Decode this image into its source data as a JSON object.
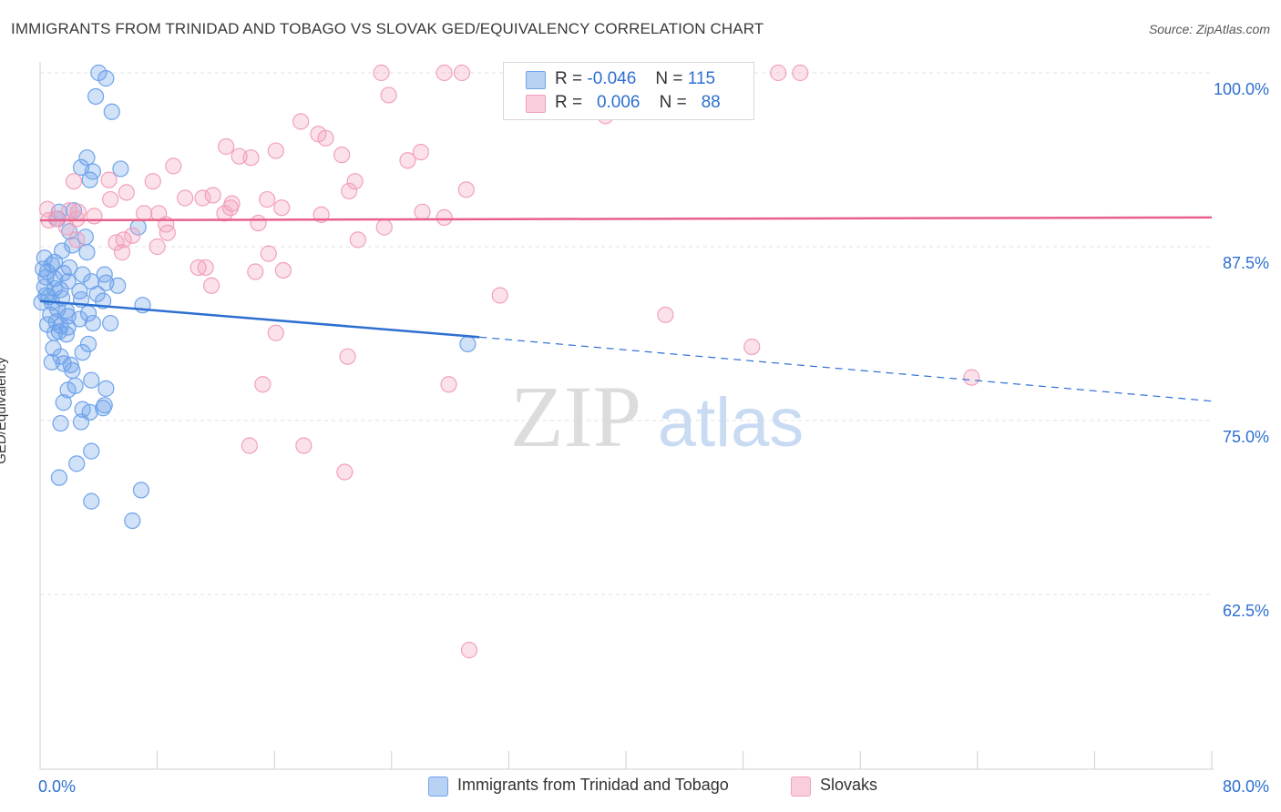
{
  "header": {
    "title": "IMMIGRANTS FROM TRINIDAD AND TOBAGO VS SLOVAK GED/EQUIVALENCY CORRELATION CHART",
    "source": "Source: ZipAtlas.com"
  },
  "watermark": {
    "zip": "ZIP",
    "atlas": "atlas"
  },
  "legend": {
    "rows": [
      {
        "r_label": "R =",
        "r_value": "-0.046",
        "n_label": "N =",
        "n_value": "115",
        "color": "#6ea3ea"
      },
      {
        "r_label": "R =",
        "r_value": "0.006",
        "n_label": "N =",
        "n_value": "88",
        "color": "#f2a0bb"
      }
    ]
  },
  "bottom_legend": {
    "series1": "Immigrants from Trinidad and Tobago",
    "series2": "Slovaks"
  },
  "chart_data": {
    "type": "scatter",
    "ylabel": "GED/Equivalency",
    "xlabel": "",
    "xlim": [
      0,
      80
    ],
    "ylim": [
      52,
      101
    ],
    "x_tick_labels": [
      "0.0%",
      "80.0%"
    ],
    "y_ticks": [
      100,
      87.5,
      75,
      62.5
    ],
    "y_tick_labels": [
      "100.0%",
      "87.5%",
      "75.0%",
      "62.5%"
    ],
    "grid": true,
    "legend_position": "top-center",
    "series": [
      {
        "name": "Immigrants from Trinidad and Tobago",
        "color": "#6ea3ea",
        "line_color": "#2d6fd1",
        "trend": {
          "x": [
            0,
            30
          ],
          "y": [
            83.6,
            81.0
          ],
          "dashed_to": [
            80,
            76.4
          ]
        },
        "points": [
          [
            4.0,
            100
          ],
          [
            4.5,
            99.6
          ],
          [
            3.8,
            98.3
          ],
          [
            4.9,
            97.2
          ],
          [
            3.2,
            93.9
          ],
          [
            2.8,
            93.2
          ],
          [
            3.6,
            92.9
          ],
          [
            5.5,
            93.1
          ],
          [
            3.4,
            92.3
          ],
          [
            1.3,
            90.0
          ],
          [
            2.3,
            90.1
          ],
          [
            1.2,
            89.5
          ],
          [
            6.7,
            88.9
          ],
          [
            2.0,
            88.6
          ],
          [
            3.1,
            88.2
          ],
          [
            2.2,
            87.6
          ],
          [
            1.5,
            87.2
          ],
          [
            3.2,
            87.1
          ],
          [
            0.3,
            86.7
          ],
          [
            1.0,
            86.4
          ],
          [
            0.8,
            86.2
          ],
          [
            2.0,
            86.0
          ],
          [
            0.2,
            85.9
          ],
          [
            0.5,
            85.7
          ],
          [
            1.6,
            85.6
          ],
          [
            2.9,
            85.5
          ],
          [
            4.4,
            85.5
          ],
          [
            0.4,
            85.3
          ],
          [
            1.0,
            85.2
          ],
          [
            1.9,
            85.0
          ],
          [
            3.5,
            85.0
          ],
          [
            4.5,
            84.9
          ],
          [
            5.3,
            84.7
          ],
          [
            0.3,
            84.6
          ],
          [
            1.0,
            84.5
          ],
          [
            1.4,
            84.4
          ],
          [
            2.7,
            84.3
          ],
          [
            3.9,
            84.1
          ],
          [
            0.4,
            84.0
          ],
          [
            0.6,
            83.9
          ],
          [
            1.5,
            83.8
          ],
          [
            2.8,
            83.7
          ],
          [
            4.3,
            83.6
          ],
          [
            0.1,
            83.5
          ],
          [
            0.8,
            83.5
          ],
          [
            7.0,
            83.3
          ],
          [
            1.2,
            83.0
          ],
          [
            1.8,
            82.9
          ],
          [
            3.3,
            82.7
          ],
          [
            0.7,
            82.6
          ],
          [
            1.9,
            82.5
          ],
          [
            2.7,
            82.3
          ],
          [
            1.1,
            82.1
          ],
          [
            3.6,
            82.0
          ],
          [
            4.8,
            82.0
          ],
          [
            0.5,
            81.9
          ],
          [
            1.4,
            81.8
          ],
          [
            1.9,
            81.7
          ],
          [
            1.3,
            81.4
          ],
          [
            1.0,
            81.3
          ],
          [
            1.8,
            81.2
          ],
          [
            29.2,
            80.5
          ],
          [
            3.3,
            80.5
          ],
          [
            0.9,
            80.2
          ],
          [
            2.9,
            79.9
          ],
          [
            1.4,
            79.6
          ],
          [
            0.8,
            79.2
          ],
          [
            1.6,
            79.1
          ],
          [
            2.1,
            79.0
          ],
          [
            2.2,
            78.6
          ],
          [
            3.5,
            77.9
          ],
          [
            2.4,
            77.5
          ],
          [
            4.5,
            77.3
          ],
          [
            1.9,
            77.2
          ],
          [
            1.6,
            76.3
          ],
          [
            2.9,
            75.8
          ],
          [
            4.3,
            75.9
          ],
          [
            4.4,
            76.1
          ],
          [
            3.4,
            75.6
          ],
          [
            1.4,
            74.8
          ],
          [
            2.8,
            74.9
          ],
          [
            3.5,
            72.8
          ],
          [
            2.5,
            71.9
          ],
          [
            1.3,
            70.9
          ],
          [
            6.9,
            70.0
          ],
          [
            3.5,
            69.2
          ],
          [
            6.3,
            67.8
          ]
        ]
      },
      {
        "name": "Slovaks",
        "color": "#f2a0bb",
        "line_color": "#e8608a",
        "trend": {
          "x": [
            0,
            80
          ],
          "y": [
            89.4,
            89.6
          ]
        },
        "points": [
          [
            23.3,
            100
          ],
          [
            27.6,
            100
          ],
          [
            28.8,
            100
          ],
          [
            39.3,
            100
          ],
          [
            50.4,
            100
          ],
          [
            51.9,
            100
          ],
          [
            23.8,
            98.4
          ],
          [
            38.6,
            96.9
          ],
          [
            17.8,
            96.5
          ],
          [
            19.5,
            95.3
          ],
          [
            19.0,
            95.6
          ],
          [
            12.7,
            94.7
          ],
          [
            16.1,
            94.4
          ],
          [
            26.0,
            94.3
          ],
          [
            20.6,
            94.1
          ],
          [
            13.6,
            94.0
          ],
          [
            14.4,
            93.9
          ],
          [
            25.1,
            93.7
          ],
          [
            9.1,
            93.3
          ],
          [
            2.3,
            92.2
          ],
          [
            4.7,
            92.3
          ],
          [
            7.7,
            92.2
          ],
          [
            21.5,
            92.2
          ],
          [
            21.1,
            91.5
          ],
          [
            29.1,
            91.6
          ],
          [
            5.9,
            91.4
          ],
          [
            11.8,
            91.2
          ],
          [
            9.9,
            91.0
          ],
          [
            11.1,
            91.0
          ],
          [
            15.5,
            90.9
          ],
          [
            4.8,
            90.9
          ],
          [
            13.1,
            90.6
          ],
          [
            13.0,
            90.3
          ],
          [
            16.5,
            90.3
          ],
          [
            0.5,
            90.2
          ],
          [
            2.0,
            90.1
          ],
          [
            2.6,
            90.0
          ],
          [
            12.6,
            89.9
          ],
          [
            8.1,
            89.9
          ],
          [
            19.2,
            89.8
          ],
          [
            7.1,
            89.9
          ],
          [
            26.1,
            90.0
          ],
          [
            3.7,
            89.7
          ],
          [
            27.6,
            89.6
          ],
          [
            1.1,
            89.5
          ],
          [
            2.5,
            89.5
          ],
          [
            0.6,
            89.4
          ],
          [
            14.9,
            89.2
          ],
          [
            8.6,
            89.1
          ],
          [
            1.8,
            88.9
          ],
          [
            23.5,
            88.9
          ],
          [
            8.7,
            88.5
          ],
          [
            6.3,
            88.3
          ],
          [
            5.7,
            88.0
          ],
          [
            2.5,
            88.0
          ],
          [
            21.7,
            88.0
          ],
          [
            5.2,
            87.8
          ],
          [
            8.0,
            87.5
          ],
          [
            15.6,
            87.0
          ],
          [
            5.6,
            87.1
          ],
          [
            10.8,
            86.0
          ],
          [
            11.3,
            86.0
          ],
          [
            14.7,
            85.7
          ],
          [
            16.6,
            85.8
          ],
          [
            11.7,
            84.7
          ],
          [
            31.4,
            84.0
          ],
          [
            42.7,
            82.6
          ],
          [
            16.1,
            81.3
          ],
          [
            48.6,
            80.3
          ],
          [
            21.0,
            79.6
          ],
          [
            63.6,
            78.1
          ],
          [
            15.2,
            77.6
          ],
          [
            27.9,
            77.6
          ],
          [
            14.3,
            73.2
          ],
          [
            18.0,
            73.2
          ],
          [
            20.8,
            71.3
          ],
          [
            29.3,
            58.5
          ]
        ]
      }
    ]
  }
}
